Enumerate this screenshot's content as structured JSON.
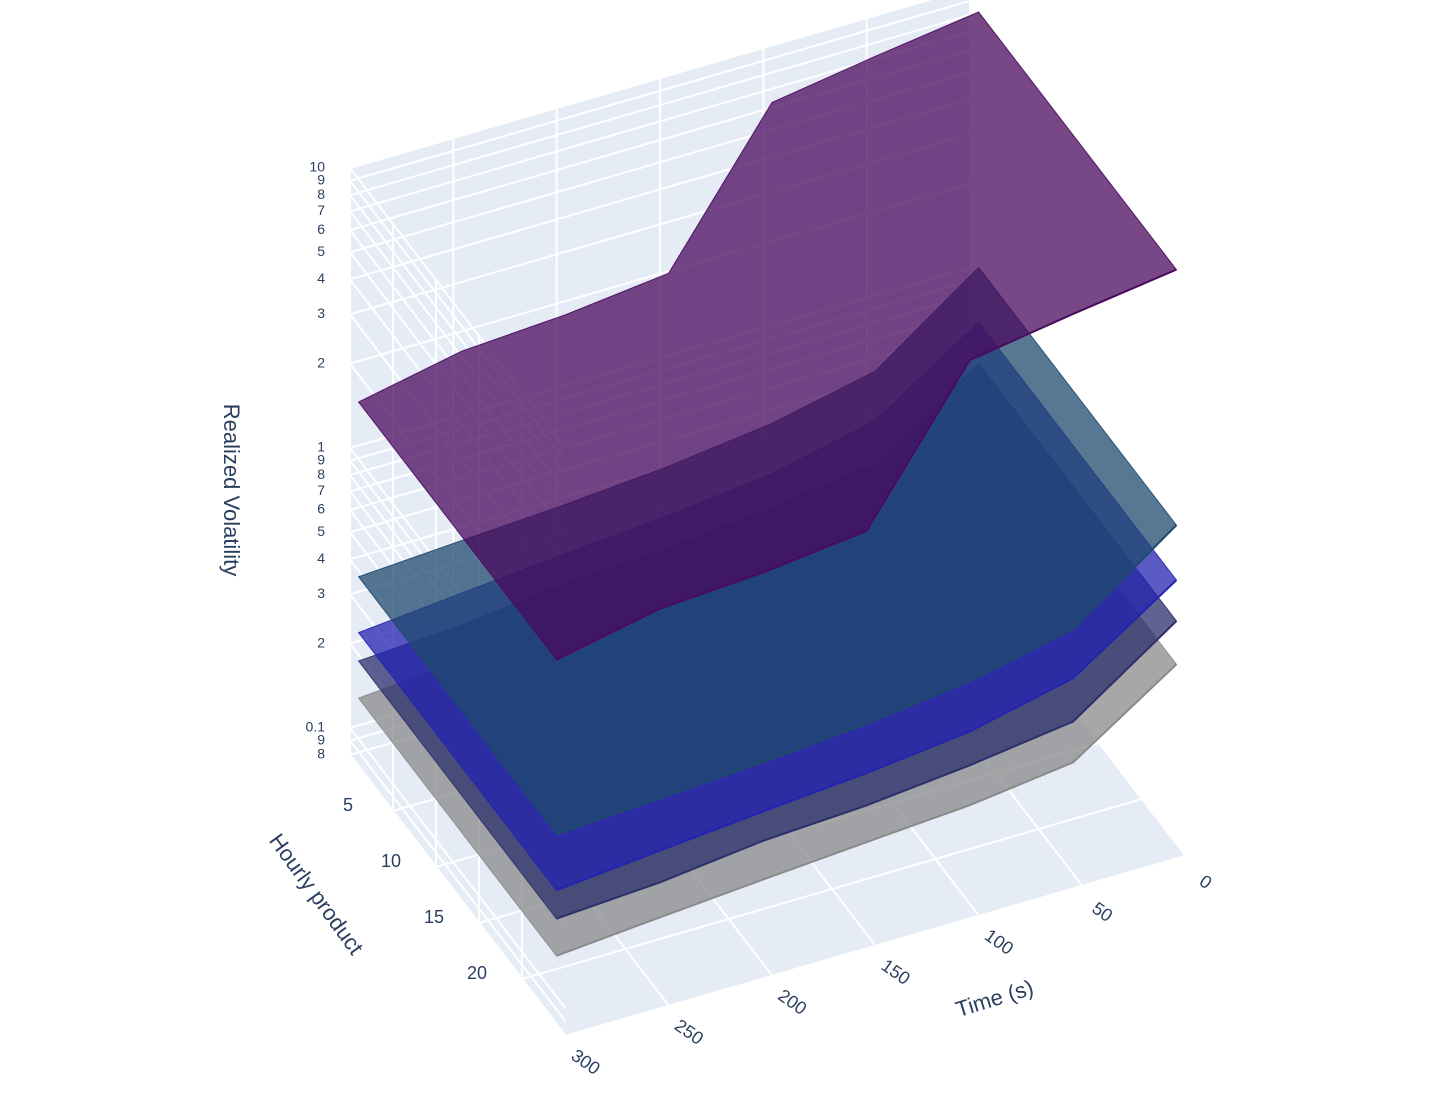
{
  "chart_data": {
    "type": "surface3d",
    "xaxis_title": "Time (s)",
    "yaxis_title": "Hourly product",
    "zaxis_title": "Realized Volatility",
    "xlim": [
      0,
      300
    ],
    "xticks": [
      0,
      50,
      100,
      150,
      200,
      250,
      300
    ],
    "ylim": [
      0,
      25
    ],
    "yticks": [
      5,
      10,
      15,
      20
    ],
    "zlim": [
      0.08,
      10
    ],
    "zscale": "log",
    "zticks": [
      {
        "value": 0.08,
        "label": "8"
      },
      {
        "value": 0.09,
        "label": "9"
      },
      0.1,
      {
        "value": 0.2,
        "label": "2"
      },
      {
        "value": 0.3,
        "label": "3"
      },
      {
        "value": 0.4,
        "label": "4"
      },
      {
        "value": 0.5,
        "label": "5"
      },
      {
        "value": 0.6,
        "label": "6"
      },
      {
        "value": 0.7,
        "label": "7"
      },
      {
        "value": 0.8,
        "label": "8"
      },
      {
        "value": 0.9,
        "label": "9"
      },
      1,
      2,
      3,
      4,
      5,
      6,
      7,
      8,
      9,
      10
    ],
    "grid": true,
    "x": [
      0,
      50,
      100,
      150,
      200,
      250,
      300
    ],
    "series": [
      {
        "color": "#8a8a8a",
        "values": [
          0.35,
          0.2,
          0.18,
          0.17,
          0.16,
          0.15,
          0.14
        ]
      },
      {
        "color": "#2b2f6b",
        "values": [
          0.5,
          0.28,
          0.25,
          0.23,
          0.22,
          0.2,
          0.19
        ]
      },
      {
        "color": "#2323b0",
        "values": [
          0.7,
          0.4,
          0.33,
          0.3,
          0.28,
          0.26,
          0.24
        ]
      },
      {
        "color": "#1f4a6e",
        "values": [
          1.1,
          0.6,
          0.5,
          0.45,
          0.42,
          0.4,
          0.38
        ]
      },
      {
        "color": "#4a0a5e",
        "values": [
          9,
          8,
          7,
          2.2,
          2,
          1.9,
          1.6
        ]
      }
    ]
  }
}
